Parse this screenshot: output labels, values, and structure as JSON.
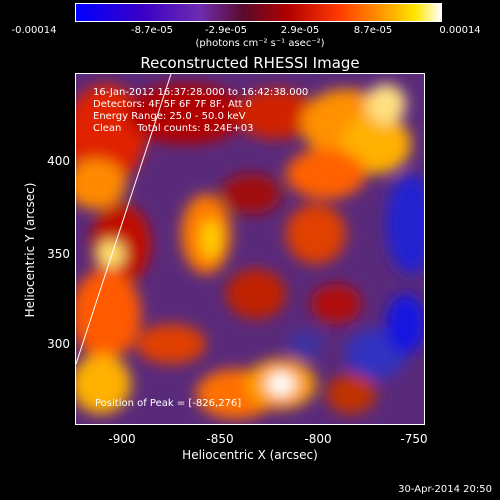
{
  "colorbar": {
    "ticks": [
      "-0.00014",
      "-8.7e-05",
      "-2.9e-05",
      "2.9e-05",
      "8.7e-05",
      "0.00014"
    ],
    "unit": "(photons cm⁻² s⁻¹ asec⁻²)"
  },
  "title": "Reconstructed RHESSI Image",
  "info": {
    "time": "16-Jan-2012 16:37:28.000 to 16:42:38.000",
    "detectors": "Detectors: 4F 5F 6F 7F 8F, Att 0",
    "energy": "Energy Range: 25.0 - 50.0 keV",
    "clean": "Clean     Total counts: 8.24E+03"
  },
  "peak": "Position of Peak = [-826,276]",
  "axes": {
    "xlabel": "Heliocentric X (arcsec)",
    "ylabel": "Heliocentric Y (arcsec)",
    "xticks": [
      "-900",
      "-850",
      "-800",
      "-750"
    ],
    "yticks": [
      "400",
      "350",
      "300"
    ]
  },
  "timestamp": "30-Apr-2014 20:50"
}
